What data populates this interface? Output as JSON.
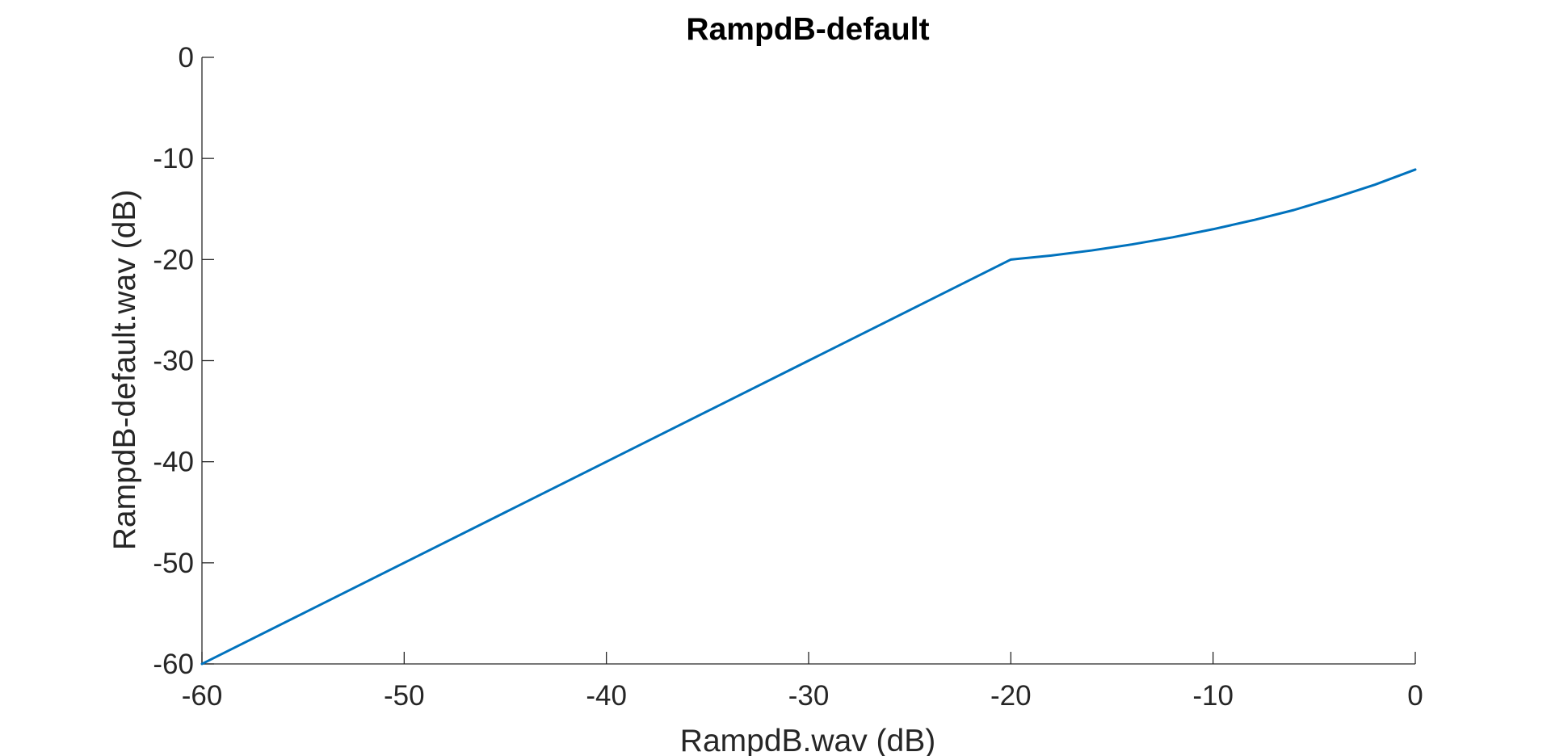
{
  "chart_data": {
    "type": "line",
    "title": "RampdB-default",
    "xlabel": "RampdB.wav (dB)",
    "ylabel": "RampdB-default.wav (dB)",
    "xlim": [
      -60,
      0
    ],
    "ylim": [
      -60,
      0
    ],
    "xticks": [
      -60,
      -50,
      -40,
      -30,
      -20,
      -10,
      0
    ],
    "yticks": [
      -60,
      -50,
      -40,
      -30,
      -20,
      -10,
      0
    ],
    "xtick_labels": [
      "-60",
      "-50",
      "-40",
      "-30",
      "-20",
      "-10",
      "0"
    ],
    "ytick_labels": [
      "-60",
      "-50",
      "-40",
      "-30",
      "-20",
      "-10",
      "0"
    ],
    "grid": false,
    "box": "off",
    "series": [
      {
        "color": "#0072BD",
        "x": [
          -60,
          -55,
          -50,
          -45,
          -40,
          -35,
          -30,
          -25,
          -20,
          -18,
          -16,
          -14,
          -12,
          -10,
          -8,
          -6,
          -4,
          -2,
          0
        ],
        "y": [
          -60,
          -55,
          -50,
          -45,
          -40,
          -35,
          -30,
          -25,
          -20,
          -19.6,
          -19.1,
          -18.5,
          -17.8,
          -17.0,
          -16.1,
          -15.1,
          -13.9,
          -12.6,
          -11.1
        ]
      }
    ]
  }
}
